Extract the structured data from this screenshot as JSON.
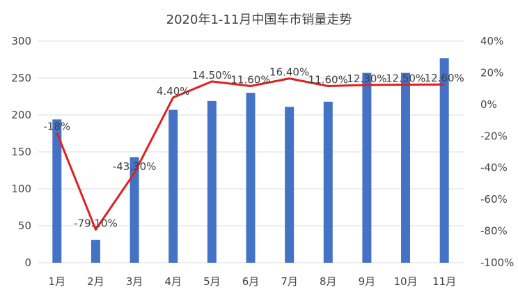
{
  "chart_data": {
    "type": "bar",
    "title": "2020年1-11月中国车市销量走势",
    "categories": [
      "1月",
      "2月",
      "3月",
      "4月",
      "5月",
      "6月",
      "7月",
      "8月",
      "9月",
      "10月",
      "11月"
    ],
    "series": [
      {
        "type": "bar",
        "axis": "left",
        "color": "#4472C4",
        "values": [
          194,
          31,
          143,
          207,
          219,
          230,
          211,
          218,
          257,
          257,
          277
        ]
      },
      {
        "type": "line",
        "axis": "right",
        "color": "#E02020",
        "values": [
          -18,
          -79.1,
          -43.3,
          4.4,
          14.5,
          11.6,
          16.4,
          11.6,
          12.3,
          12.5,
          12.6
        ],
        "labels": [
          "-18%",
          "-79.10%",
          "-43.30%",
          "4.40%",
          "14.50%",
          "11.60%",
          "16.40%",
          "11.60%",
          "12.30%",
          "12.50%",
          "12.60%"
        ]
      }
    ],
    "ylim_left": [
      0,
      300
    ],
    "yticks_left": [
      "0",
      "50",
      "100",
      "150",
      "200",
      "250",
      "300"
    ],
    "ylim_right": [
      -100,
      40
    ],
    "yticks_right": [
      "-100%",
      "-80%",
      "-60%",
      "-40%",
      "-20%",
      "0%",
      "20%",
      "40%"
    ],
    "grid": true
  }
}
